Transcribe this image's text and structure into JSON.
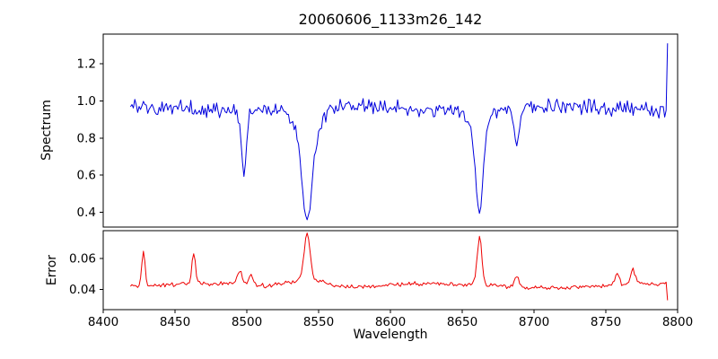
{
  "figure": {
    "background": "#ffffff",
    "title": "20060606_1133m26_142"
  },
  "chart_data": [
    {
      "type": "line",
      "series_name": "spectrum",
      "title": "20060606_1133m26_142",
      "xlabel": "Wavelength",
      "ylabel": "Spectrum",
      "color": "#0000dd",
      "grid": false,
      "legend": false,
      "xlim": [
        8400,
        8800
      ],
      "ylim": [
        0.32,
        1.36
      ],
      "x_ticks": [
        8400,
        8450,
        8500,
        8550,
        8600,
        8650,
        8700,
        8750,
        8800
      ],
      "x_tick_labels": [
        "8400",
        "8450",
        "8500",
        "8550",
        "8600",
        "8650",
        "8700",
        "8750",
        "8800"
      ],
      "y_ticks": [
        0.4,
        0.6,
        0.8,
        1.0,
        1.2
      ],
      "y_tick_labels": [
        "0.4",
        "0.6",
        "0.8",
        "1.0",
        "1.2"
      ],
      "x_start": 8419,
      "x_end": 8793,
      "x_step": 1,
      "baseline": 0.96,
      "noise_amplitude": 0.05,
      "seed": 20060606,
      "slow_variation": {
        "amplitude": 0.012,
        "period": 150,
        "phase": 1.0
      },
      "absorption_lines": [
        {
          "center": 8498,
          "depth": 0.34,
          "sigma": 1.8
        },
        {
          "center": 8542,
          "depth": 0.44,
          "sigma": 3.2
        },
        {
          "center": 8542,
          "depth": 0.18,
          "sigma": 8.0
        },
        {
          "center": 8662,
          "depth": 0.42,
          "sigma": 2.4
        },
        {
          "center": 8662,
          "depth": 0.14,
          "sigma": 6.0
        },
        {
          "center": 8688,
          "depth": 0.22,
          "sigma": 1.8
        }
      ],
      "end_point": {
        "x": 8793,
        "value": 1.31
      }
    },
    {
      "type": "line",
      "series_name": "error",
      "xlabel": "Wavelength",
      "ylabel": "Error",
      "color": "#ee0000",
      "grid": false,
      "legend": false,
      "xlim": [
        8400,
        8800
      ],
      "ylim": [
        0.027,
        0.078
      ],
      "y_ticks": [
        0.04,
        0.06
      ],
      "y_tick_labels": [
        "0.04",
        "0.06"
      ],
      "x_start": 8419,
      "x_end": 8793,
      "x_step": 1,
      "baseline": 0.0425,
      "noise_amplitude": 0.0017,
      "seed": 1133,
      "slow_variation": {
        "amplitude": 0.0012,
        "period": 160,
        "phase": 2.0
      },
      "peaks": [
        {
          "center": 8428,
          "height": 0.022,
          "sigma": 1.2
        },
        {
          "center": 8463,
          "height": 0.02,
          "sigma": 1.2
        },
        {
          "center": 8495,
          "height": 0.009,
          "sigma": 1.5
        },
        {
          "center": 8503,
          "height": 0.008,
          "sigma": 1.2
        },
        {
          "center": 8542,
          "height": 0.03,
          "sigma": 2.0
        },
        {
          "center": 8542,
          "height": 0.005,
          "sigma": 12.0
        },
        {
          "center": 8662,
          "height": 0.031,
          "sigma": 1.6
        },
        {
          "center": 8688,
          "height": 0.006,
          "sigma": 1.5
        },
        {
          "center": 8758,
          "height": 0.007,
          "sigma": 1.5
        },
        {
          "center": 8769,
          "height": 0.01,
          "sigma": 1.5
        }
      ],
      "end_point": {
        "x": 8793,
        "value": 0.033
      }
    }
  ]
}
